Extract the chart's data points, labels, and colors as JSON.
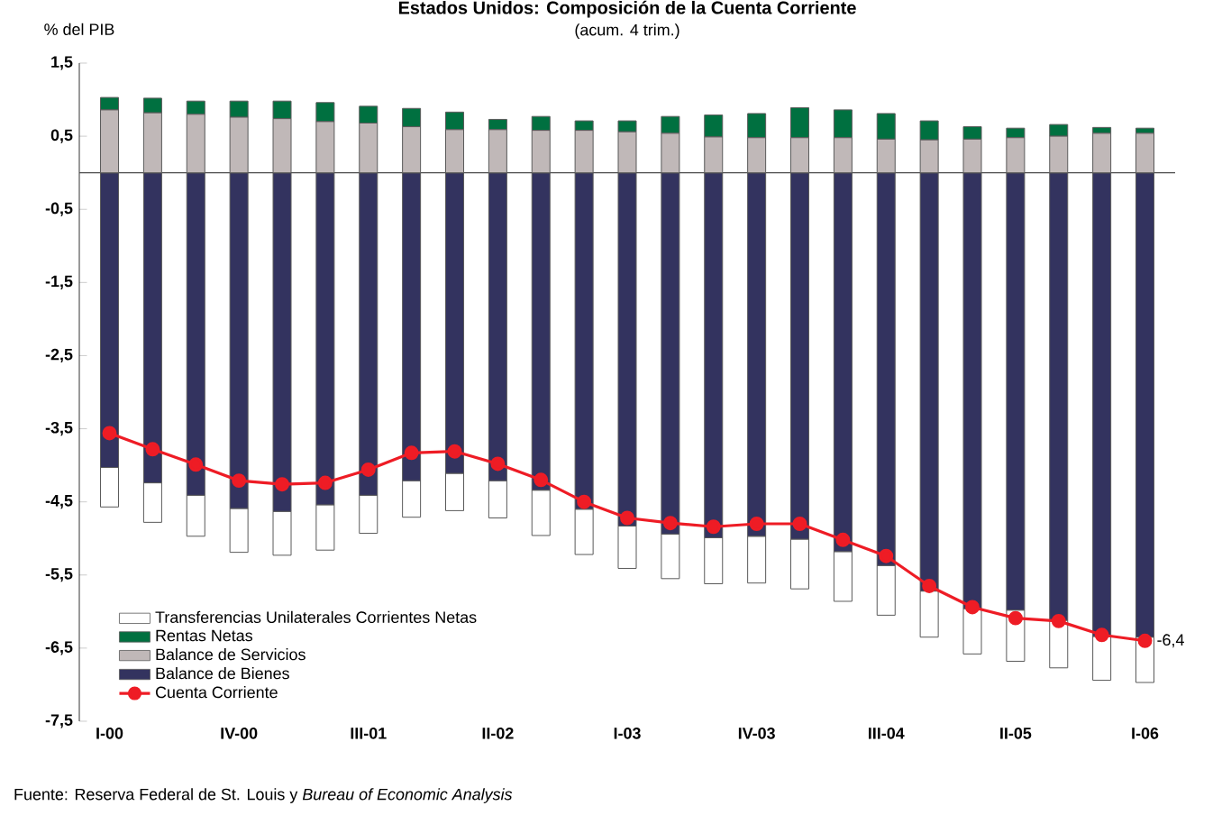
{
  "chart_data": {
    "type": "bar",
    "title": "Estados Unidos: Composición de la Cuenta Corriente",
    "subtitle": "(acum. 4 trim.)",
    "ylabel": "% del PIB",
    "annotations": [
      "Fuente: Reserva Federal de St. Louis y *Bureau of Economic Analysis*"
    ],
    "categories": [
      "I-00",
      null,
      null,
      "IV-00",
      null,
      null,
      "III-01",
      null,
      null,
      "II-02",
      null,
      null,
      "I-03",
      null,
      null,
      "IV-03",
      null,
      null,
      "III-04",
      null,
      null,
      "II-05",
      null,
      null,
      "I-06"
    ],
    "stacked": true,
    "series": [
      {
        "name": "Balance de Bienes",
        "color": "#33335f",
        "values": [
          -4.03,
          -4.24,
          -4.41,
          -4.59,
          -4.63,
          -4.54,
          -4.41,
          -4.21,
          -4.11,
          -4.21,
          -4.34,
          -4.6,
          -4.83,
          -4.94,
          -4.99,
          -4.97,
          -5.01,
          -5.18,
          -5.37,
          -5.72,
          -5.96,
          -5.98,
          -6.12,
          -6.34,
          -6.35
        ]
      },
      {
        "name": "Balance de Servicios",
        "color": "#c0b8b8",
        "values": [
          0.86,
          0.82,
          0.8,
          0.76,
          0.74,
          0.7,
          0.68,
          0.63,
          0.59,
          0.59,
          0.58,
          0.58,
          0.56,
          0.54,
          0.49,
          0.48,
          0.48,
          0.48,
          0.46,
          0.45,
          0.46,
          0.48,
          0.5,
          0.54,
          0.54
        ]
      },
      {
        "name": "Rentas Netas",
        "color": "#007040",
        "values": [
          0.17,
          0.2,
          0.18,
          0.22,
          0.24,
          0.26,
          0.23,
          0.25,
          0.24,
          0.14,
          0.19,
          0.13,
          0.15,
          0.23,
          0.3,
          0.33,
          0.41,
          0.38,
          0.35,
          0.26,
          0.17,
          0.13,
          0.16,
          0.08,
          0.07
        ]
      },
      {
        "name": "Transferencias Unilaterales Corrientes Netas",
        "color": "#ffffff",
        "values": [
          -0.54,
          -0.54,
          -0.56,
          -0.6,
          -0.6,
          -0.62,
          -0.52,
          -0.5,
          -0.51,
          -0.51,
          -0.62,
          -0.62,
          -0.58,
          -0.61,
          -0.63,
          -0.64,
          -0.68,
          -0.68,
          -0.68,
          -0.63,
          -0.62,
          -0.7,
          -0.65,
          -0.6,
          -0.62
        ]
      },
      {
        "name": "Cuenta Corriente",
        "type": "line",
        "color": "#ee1c25",
        "marker": "circle",
        "values": [
          -3.56,
          -3.78,
          -3.99,
          -4.21,
          -4.26,
          -4.24,
          -4.06,
          -3.83,
          -3.81,
          -3.98,
          -4.2,
          -4.5,
          -4.72,
          -4.79,
          -4.84,
          -4.8,
          -4.8,
          -5.02,
          -5.24,
          -5.65,
          -5.94,
          -6.09,
          -6.13,
          -6.32,
          -6.4
        ],
        "value_labels": [
          null,
          null,
          null,
          null,
          null,
          null,
          null,
          null,
          null,
          null,
          null,
          null,
          null,
          null,
          null,
          null,
          null,
          null,
          null,
          null,
          null,
          null,
          null,
          null,
          "-6,4"
        ]
      }
    ],
    "ylim": [
      -7.5,
      1.5
    ],
    "yticks": [
      {
        "value": 1.5,
        "label": "1,5"
      },
      {
        "value": 0.5,
        "label": "0,5"
      },
      {
        "value": -0.5,
        "label": "-0,5"
      },
      {
        "value": -1.5,
        "label": "-1,5"
      },
      {
        "value": -2.5,
        "label": "-2,5"
      },
      {
        "value": -3.5,
        "label": "-3,5"
      },
      {
        "value": -4.5,
        "label": "-4,5"
      },
      {
        "value": -5.5,
        "label": "-5,5"
      },
      {
        "value": -6.5,
        "label": "-6,5"
      },
      {
        "value": -7.5,
        "label": "-7,5"
      }
    ],
    "legend": "bottom left"
  }
}
